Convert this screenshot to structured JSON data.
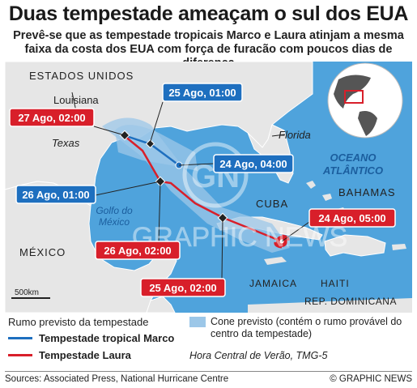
{
  "title": "Duas tempestade ameaçam o sul dos EUA",
  "subtitle": "Prevê-se que as tempestade tropicais Marco e Laura atinjam a mesma faixa da costa dos EUA com força de furacão com poucos dias de diferença",
  "map": {
    "labels": {
      "usa": "ESTADOS UNIDOS",
      "louisiana": "Louisiana",
      "texas": "Texas",
      "florida": "Florida",
      "atlantic_line1": "OCEANO",
      "atlantic_line2": "ATLÂNTICO",
      "gulf_line1": "Golfo do",
      "gulf_line2": "México",
      "cuba": "CUBA",
      "bahamas": "BAHAMAS",
      "mexico": "MÉXICO",
      "jamaica": "JAMAICA",
      "haiti": "HAITI",
      "dominican": "REP. DOMINICANA",
      "scale": "500km",
      "watermark_top": "GN",
      "watermark_bottom": "GRAPHIC NEWS"
    },
    "marco_points": [
      {
        "label": "25 Ago, 01:00"
      },
      {
        "label": "24 Ago, 04:00"
      },
      {
        "label": "26 Ago, 01:00"
      }
    ],
    "laura_points": [
      {
        "label": "27 Ago, 02:00"
      },
      {
        "label": "26 Ago, 02:00"
      },
      {
        "label": "24 Ago, 05:00"
      },
      {
        "label": "25 Ago, 02:00"
      }
    ],
    "colors": {
      "marco": "#1e6fbf",
      "laura": "#d81f2a",
      "sea": "#4fa3dc",
      "land": "#e6e6e6",
      "cone": "#9cc7e8"
    }
  },
  "legend": {
    "track_heading": "Rumo previsto da tempestade",
    "marco": "Tempestade tropical Marco",
    "laura": "Tempestade Laura",
    "cone": "Cone previsto (contém o rumo provável do centro da tempestade)",
    "timezone": "Hora Central de Verão, TMG-5"
  },
  "footer": {
    "sources": "Sources: Associated Press, National Hurricane Centre",
    "copyright": "© GRAPHIC NEWS"
  }
}
